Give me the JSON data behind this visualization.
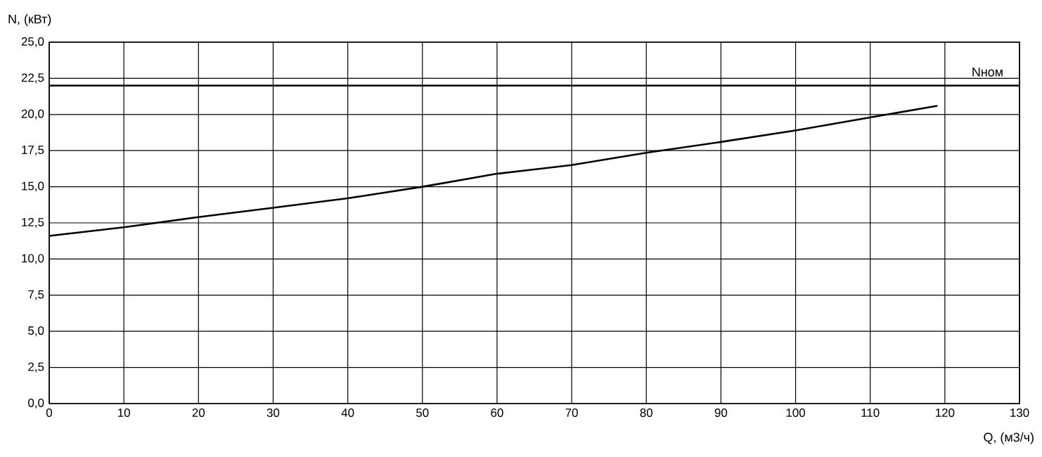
{
  "chart_data": {
    "type": "line",
    "xlabel": "Q, (м3/ч)",
    "ylabel": "N, (кВт)",
    "x": [
      0,
      10,
      20,
      30,
      40,
      50,
      60,
      70,
      80,
      90,
      100,
      110,
      119
    ],
    "series": [
      {
        "color": "#000000",
        "values": [
          11.6,
          12.2,
          12.9,
          13.55,
          14.2,
          15.0,
          15.9,
          16.5,
          17.35,
          18.1,
          18.9,
          19.8,
          20.6
        ]
      }
    ],
    "xlim": [
      0,
      130
    ],
    "ylim": [
      0,
      25
    ],
    "xticks": [
      0,
      10,
      20,
      30,
      40,
      50,
      60,
      70,
      80,
      90,
      100,
      110,
      120,
      130
    ],
    "yticks": [
      {
        "value": 0,
        "label": "0,0"
      },
      {
        "value": 2.5,
        "label": "2,5"
      },
      {
        "value": 5,
        "label": "5,0"
      },
      {
        "value": 7.5,
        "label": "7,5"
      },
      {
        "value": 10,
        "label": "10,0"
      },
      {
        "value": 12.5,
        "label": "12,5"
      },
      {
        "value": 15,
        "label": "15,0"
      },
      {
        "value": 17.5,
        "label": "17,5"
      },
      {
        "value": 20,
        "label": "20,0"
      },
      {
        "value": 22.5,
        "label": "22,5"
      },
      {
        "value": 25,
        "label": "25,0"
      }
    ],
    "grid": true,
    "ref_lines": [
      {
        "axis": "y",
        "value": 22,
        "label": "Nном",
        "color": "#000000"
      }
    ]
  }
}
